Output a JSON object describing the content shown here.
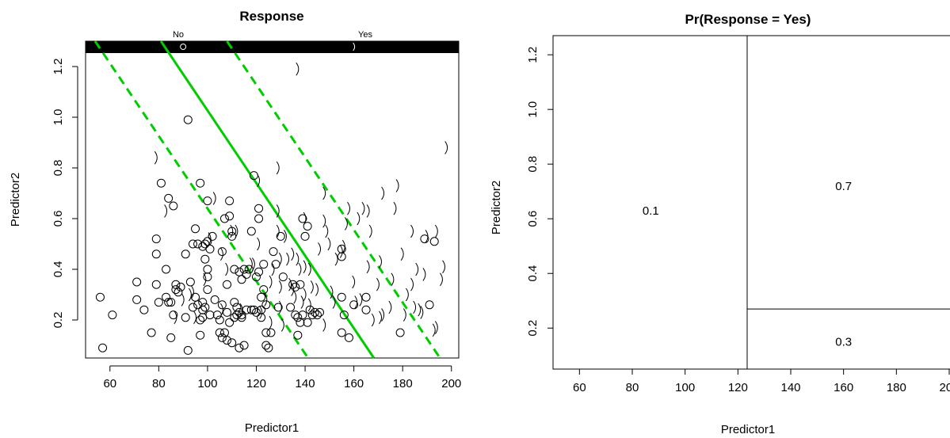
{
  "chart_data": [
    {
      "type": "scatter",
      "title": "Response",
      "xlabel": "Predictor1",
      "ylabel": "Predictor2",
      "xlim": [
        50,
        203
      ],
      "ylim": [
        0.05,
        1.3
      ],
      "xticks": [
        60,
        80,
        100,
        120,
        140,
        160,
        180,
        200
      ],
      "yticks": [
        0.2,
        0.4,
        0.6,
        0.8,
        1.0,
        1.2
      ],
      "xtick_labels": [
        "60",
        "80",
        "100",
        "120",
        "140",
        "160",
        "180",
        "200"
      ],
      "ytick_labels": [
        "0.2",
        "0.4",
        "0.6",
        "0.8",
        "1.0",
        "1.2"
      ],
      "strip": {
        "left_label": "No",
        "right_label": "Yes",
        "no_marker_x": 90,
        "yes_marker_x": 160
      },
      "series": [
        {
          "name": "No",
          "marker": "circle",
          "points": [
            [
              56,
              0.29
            ],
            [
              57,
              0.09
            ],
            [
              61,
              0.22
            ],
            [
              71,
              0.35
            ],
            [
              71,
              0.28
            ],
            [
              74,
              0.24
            ],
            [
              77,
              0.15
            ],
            [
              79,
              0.52
            ],
            [
              79,
              0.46
            ],
            [
              79,
              0.34
            ],
            [
              80,
              0.27
            ],
            [
              81,
              0.74
            ],
            [
              83,
              0.4
            ],
            [
              83,
              0.29
            ],
            [
              84,
              0.27
            ],
            [
              84,
              0.68
            ],
            [
              85,
              0.13
            ],
            [
              85,
              0.27
            ],
            [
              86,
              0.65
            ],
            [
              86,
              0.22
            ],
            [
              87,
              0.34
            ],
            [
              87,
              0.32
            ],
            [
              88,
              0.31
            ],
            [
              89,
              0.33
            ],
            [
              91,
              0.46
            ],
            [
              91,
              0.21
            ],
            [
              92,
              0.99
            ],
            [
              92,
              0.08
            ],
            [
              93,
              0.35
            ],
            [
              94,
              0.5
            ],
            [
              94,
              0.25
            ],
            [
              95,
              0.56
            ],
            [
              95,
              0.29
            ],
            [
              96,
              0.5
            ],
            [
              96,
              0.26
            ],
            [
              97,
              0.74
            ],
            [
              97,
              0.2
            ],
            [
              97,
              0.14
            ],
            [
              98,
              0.49
            ],
            [
              98,
              0.27
            ],
            [
              98,
              0.24
            ],
            [
              98,
              0.21
            ],
            [
              99,
              0.5
            ],
            [
              99,
              0.44
            ],
            [
              99,
              0.25
            ],
            [
              100,
              0.67
            ],
            [
              100,
              0.51
            ],
            [
              100,
              0.4
            ],
            [
              100,
              0.37
            ],
            [
              100,
              0.32
            ],
            [
              101,
              0.48
            ],
            [
              101,
              0.22
            ],
            [
              102,
              0.53
            ],
            [
              103,
              0.28
            ],
            [
              104,
              0.22
            ],
            [
              105,
              0.2
            ],
            [
              105,
              0.15
            ],
            [
              106,
              0.13
            ],
            [
              106,
              0.47
            ],
            [
              106,
              0.26
            ],
            [
              107,
              0.6
            ],
            [
              107,
              0.15
            ],
            [
              108,
              0.34
            ],
            [
              108,
              0.12
            ],
            [
              108,
              0.23
            ],
            [
              109,
              0.67
            ],
            [
              109,
              0.61
            ],
            [
              109,
              0.19
            ],
            [
              110,
              0.55
            ],
            [
              110,
              0.11
            ],
            [
              110,
              0.53
            ],
            [
              111,
              0.4
            ],
            [
              111,
              0.21
            ],
            [
              111,
              0.27
            ],
            [
              112,
              0.25
            ],
            [
              112,
              0.22
            ],
            [
              113,
              0.39
            ],
            [
              113,
              0.23
            ],
            [
              113,
              0.09
            ],
            [
              114,
              0.36
            ],
            [
              114,
              0.21
            ],
            [
              114,
              0.22
            ],
            [
              115,
              0.4
            ],
            [
              115,
              0.1
            ],
            [
              116,
              0.38
            ],
            [
              116,
              0.24
            ],
            [
              117,
              0.4
            ],
            [
              118,
              0.24
            ],
            [
              118,
              0.55
            ],
            [
              119,
              0.24
            ],
            [
              119,
              0.77
            ],
            [
              120,
              0.37
            ],
            [
              120,
              0.23
            ],
            [
              121,
              0.64
            ],
            [
              121,
              0.6
            ],
            [
              121,
              0.39
            ],
            [
              122,
              0.29
            ],
            [
              122,
              0.24
            ],
            [
              122,
              0.21
            ],
            [
              123,
              0.42
            ],
            [
              123,
              0.32
            ],
            [
              124,
              0.26
            ],
            [
              124,
              0.15
            ],
            [
              124,
              0.1
            ],
            [
              125,
              0.09
            ],
            [
              126,
              0.15
            ],
            [
              127,
              0.47
            ],
            [
              128,
              0.42
            ],
            [
              129,
              0.25
            ],
            [
              130,
              0.53
            ],
            [
              131,
              0.37
            ],
            [
              134,
              0.25
            ],
            [
              135,
              0.34
            ],
            [
              136,
              0.33
            ],
            [
              136,
              0.22
            ],
            [
              137,
              0.21
            ],
            [
              137,
              0.14
            ],
            [
              138,
              0.34
            ],
            [
              138,
              0.19
            ],
            [
              139,
              0.6
            ],
            [
              139,
              0.22
            ],
            [
              140,
              0.53
            ],
            [
              141,
              0.57
            ],
            [
              141,
              0.19
            ],
            [
              142,
              0.24
            ],
            [
              143,
              0.22
            ],
            [
              144,
              0.23
            ],
            [
              145,
              0.22
            ],
            [
              146,
              0.23
            ],
            [
              155,
              0.48
            ],
            [
              155,
              0.45
            ],
            [
              155,
              0.29
            ],
            [
              155,
              0.15
            ],
            [
              156,
              0.22
            ],
            [
              158,
              0.13
            ],
            [
              160,
              0.26
            ],
            [
              165,
              0.29
            ],
            [
              165,
              0.24
            ],
            [
              179,
              0.15
            ],
            [
              189,
              0.52
            ],
            [
              191,
              0.26
            ],
            [
              193,
              0.51
            ]
          ]
        },
        {
          "name": "Yes",
          "marker": "paren",
          "points": [
            [
              79,
              0.84
            ],
            [
              83,
              0.63
            ],
            [
              87,
              0.21
            ],
            [
              90,
              0.28
            ],
            [
              93,
              0.3
            ],
            [
              94,
              0.31
            ],
            [
              95,
              0.21
            ],
            [
              99,
              0.36
            ],
            [
              101,
              0.52
            ],
            [
              103,
              0.68
            ],
            [
              106,
              0.46
            ],
            [
              106,
              0.24
            ],
            [
              108,
              0.4
            ],
            [
              110,
              0.55
            ],
            [
              112,
              0.55
            ],
            [
              114,
              0.24
            ],
            [
              118,
              0.42
            ],
            [
              119,
              0.42
            ],
            [
              121,
              0.75
            ],
            [
              121,
              0.5
            ],
            [
              122,
              0.23
            ],
            [
              124,
              0.28
            ],
            [
              126,
              0.35
            ],
            [
              126,
              0.19
            ],
            [
              127,
              0.4
            ],
            [
              129,
              0.55
            ],
            [
              129,
              0.63
            ],
            [
              129,
              0.8
            ],
            [
              130,
              0.44
            ],
            [
              130,
              0.33
            ],
            [
              130,
              0.25
            ],
            [
              131,
              0.18
            ],
            [
              132,
              0.53
            ],
            [
              133,
              0.44
            ],
            [
              134,
              0.34
            ],
            [
              135,
              0.46
            ],
            [
              135,
              0.32
            ],
            [
              136,
              0.29
            ],
            [
              137,
              0.44
            ],
            [
              137,
              1.19
            ],
            [
              138,
              0.4
            ],
            [
              139,
              0.27
            ],
            [
              140,
              0.41
            ],
            [
              140,
              0.3
            ],
            [
              140,
              0.6
            ],
            [
              142,
              0.4
            ],
            [
              142,
              0.26
            ],
            [
              143,
              0.33
            ],
            [
              145,
              0.32
            ],
            [
              146,
              0.48
            ],
            [
              148,
              0.18
            ],
            [
              148,
              0.59
            ],
            [
              148,
              0.7
            ],
            [
              149,
              0.55
            ],
            [
              150,
              0.5
            ],
            [
              151,
              0.31
            ],
            [
              152,
              0.27
            ],
            [
              153,
              0.44
            ],
            [
              155,
              0.47
            ],
            [
              156,
              0.49
            ],
            [
              157,
              0.58
            ],
            [
              158,
              0.64
            ],
            [
              160,
              0.35
            ],
            [
              161,
              0.27
            ],
            [
              162,
              0.6
            ],
            [
              163,
              0.28
            ],
            [
              164,
              0.64
            ],
            [
              166,
              0.41
            ],
            [
              166,
              0.63
            ],
            [
              167,
              0.55
            ],
            [
              168,
              0.2
            ],
            [
              170,
              0.34
            ],
            [
              171,
              0.21
            ],
            [
              171,
              0.43
            ],
            [
              172,
              0.22
            ],
            [
              172,
              0.7
            ],
            [
              175,
              0.25
            ],
            [
              176,
              0.36
            ],
            [
              177,
              0.64
            ],
            [
              178,
              0.73
            ],
            [
              180,
              0.46
            ],
            [
              181,
              0.22
            ],
            [
              182,
              0.3
            ],
            [
              184,
              0.34
            ],
            [
              184,
              0.55
            ],
            [
              185,
              0.25
            ],
            [
              186,
              0.4
            ],
            [
              187,
              0.24
            ],
            [
              188,
              0.23
            ],
            [
              189,
              0.38
            ],
            [
              190,
              0.53
            ],
            [
              193,
              0.16
            ],
            [
              194,
              0.55
            ],
            [
              194,
              0.17
            ],
            [
              196,
              0.36
            ],
            [
              197,
              0.41
            ],
            [
              198,
              0.88
            ]
          ]
        }
      ],
      "lines": [
        {
          "style": "solid",
          "color": "#00cc00",
          "x1": 80.9,
          "y1": 1.3,
          "x2": 168.2,
          "y2": 0.05
        },
        {
          "style": "dashed",
          "color": "#00cc00",
          "x1": 53.9,
          "y1": 1.3,
          "x2": 141.2,
          "y2": 0.05
        },
        {
          "style": "dashed",
          "color": "#00cc00",
          "x1": 108.0,
          "y1": 1.3,
          "x2": 195.3,
          "y2": 0.05
        }
      ]
    },
    {
      "type": "partition",
      "title": "Pr(Response = Yes)",
      "xlabel": "Predictor1",
      "ylabel": "Predictor2",
      "xlim": [
        50,
        203
      ],
      "ylim": [
        0.05,
        1.27
      ],
      "xticks": [
        60,
        80,
        100,
        120,
        140,
        160,
        180,
        200
      ],
      "yticks": [
        0.2,
        0.4,
        0.6,
        0.8,
        1.0,
        1.2
      ],
      "xtick_labels": [
        "60",
        "80",
        "100",
        "120",
        "140",
        "160",
        "180",
        "200"
      ],
      "ytick_labels": [
        "0.2",
        "0.4",
        "0.6",
        "0.8",
        "1.0",
        "1.2"
      ],
      "splits": {
        "x": 123.5,
        "y": 0.27
      },
      "regions": [
        {
          "label": "0.1",
          "x": 87,
          "y": 0.63
        },
        {
          "label": "0.7",
          "x": 160,
          "y": 0.72
        },
        {
          "label": "0.3",
          "x": 160,
          "y": 0.15
        }
      ]
    }
  ]
}
